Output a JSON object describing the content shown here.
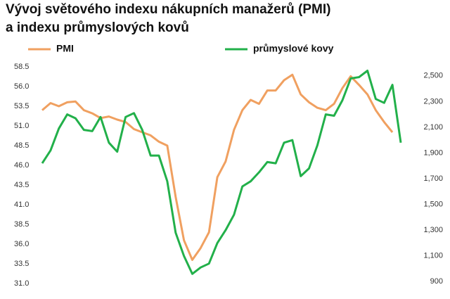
{
  "chart_data": {
    "type": "line",
    "title": "Vývoj světového indexu nákupních manažerů (PMI)",
    "subtitle": "a indexu průmyslových kovů",
    "categories": [
      null,
      null,
      null,
      null,
      null,
      null,
      null,
      null,
      null,
      null,
      null,
      null,
      null,
      null,
      null,
      null,
      null,
      null,
      null,
      null,
      null,
      null,
      null,
      null,
      null,
      null,
      null,
      null,
      null,
      null,
      null,
      null,
      null,
      null,
      null,
      null,
      null,
      null,
      null,
      null,
      null,
      null,
      null,
      null
    ],
    "series": [
      {
        "name": "PMI",
        "color": "#f0a060",
        "values": [
          53.0,
          53.9,
          53.5,
          54.0,
          54.1,
          53.0,
          52.6,
          52.0,
          52.2,
          51.8,
          51.5,
          50.6,
          50.2,
          49.8,
          49.0,
          48.5,
          42.0,
          36.5,
          34.0,
          35.5,
          37.5,
          44.5,
          46.5,
          50.5,
          53.0,
          54.3,
          53.8,
          55.5,
          55.5,
          56.8,
          57.5,
          55.0,
          54.0,
          53.3,
          53.0,
          53.8,
          55.8,
          57.3,
          56.2,
          55.0,
          53.0,
          51.5,
          50.2,
          null
        ]
      },
      {
        "name": "průmyslové kovy",
        "color": "#22b04a",
        "axis": "y2",
        "values": [
          1820,
          1920,
          2090,
          2200,
          2170,
          2080,
          2070,
          2180,
          1980,
          1910,
          2180,
          2210,
          2080,
          1880,
          1880,
          1680,
          1280,
          1100,
          960,
          1010,
          1040,
          1200,
          1300,
          1420,
          1640,
          1680,
          1750,
          1830,
          1820,
          1980,
          2000,
          1720,
          1780,
          1960,
          2200,
          2190,
          2310,
          2480,
          2490,
          2540,
          2320,
          2290,
          2430,
          1980
        ]
      }
    ],
    "ylim": [
      31,
      58.5
    ],
    "yticks": [
      {
        "value": 31,
        "label": "31.0"
      },
      33.5,
      {
        "value": 36,
        "label": "36.0"
      },
      38.5,
      {
        "value": 41,
        "label": "41.0"
      },
      43.5,
      {
        "value": 46,
        "label": "46.0"
      },
      48.5,
      {
        "value": 51,
        "label": "51.0"
      },
      53.5,
      {
        "value": 56,
        "label": "56.0"
      },
      58.5
    ],
    "y2lim": [
      885,
      2570
    ],
    "y2ticks": [
      900,
      {
        "value": 1100,
        "label": "1,100"
      },
      {
        "value": 1300,
        "label": "1,300"
      },
      {
        "value": 1500,
        "label": "1,500"
      },
      {
        "value": 1700,
        "label": "1,700"
      },
      {
        "value": 1900,
        "label": "1,900"
      },
      {
        "value": 2100,
        "label": "2,100"
      },
      {
        "value": 2300,
        "label": "2,300"
      },
      {
        "value": 2500,
        "label": "2,500"
      }
    ],
    "grid": false
  }
}
